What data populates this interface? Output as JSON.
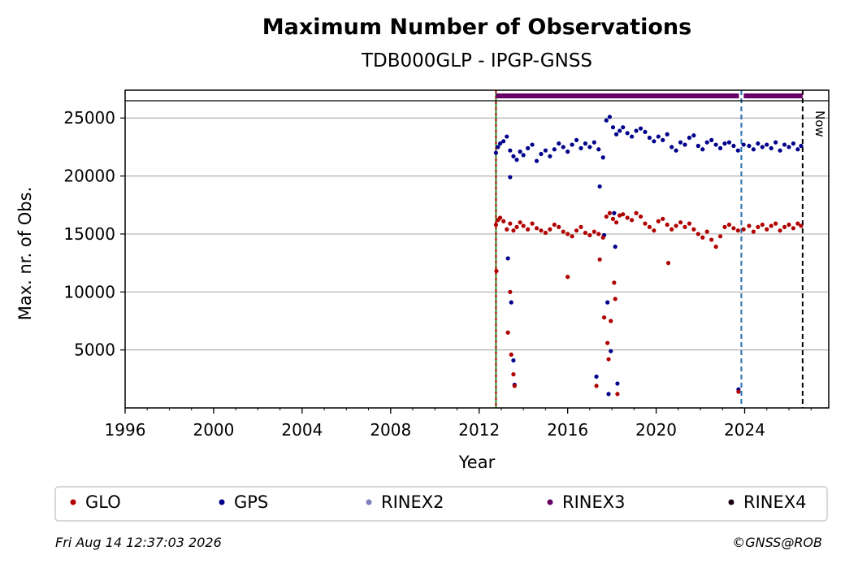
{
  "chart_data": {
    "type": "scatter",
    "title": "Maximum Number of Observations",
    "subtitle": "TDB000GLP - IPGP-GNSS",
    "xlabel": "Year",
    "ylabel": "Max. nr. of Obs.",
    "xlim": [
      1996.0,
      2027.8
    ],
    "ylim": [
      0,
      27400
    ],
    "x_ticks": [
      "1996",
      "2000",
      "2004",
      "2008",
      "2012",
      "2016",
      "2020",
      "2024"
    ],
    "y_ticks": [
      "5000",
      "10000",
      "15000",
      "20000",
      "25000"
    ],
    "grid": "horizontal",
    "legend_position": "bottom",
    "colors": {
      "GLO": "#b00000",
      "GPS": "#00008b",
      "RINEX2": "#8080c0",
      "RINEX3": "#660066",
      "RINEX4": "#1a0010",
      "start_line": "#2e8b2e",
      "event_line": "#1f6fb2",
      "now_line": "#000000"
    },
    "legend": [
      "GLO",
      "GPS",
      "RINEX2",
      "RINEX3",
      "RINEX4"
    ],
    "vertical_lines": {
      "start": 2012.76,
      "event": 2023.85,
      "now": 2026.62,
      "now_label": "Now"
    },
    "rinex_bar": {
      "name": "RINEX3",
      "start": 2012.76,
      "end": 2026.62,
      "gap_at": 2023.85
    },
    "series": [
      {
        "name": "GPS",
        "x": [
          2012.76,
          2012.85,
          2012.95,
          2013.1,
          2013.25,
          2013.4,
          2013.55,
          2013.7,
          2013.85,
          2014.0,
          2014.2,
          2014.4,
          2014.6,
          2014.8,
          2015.0,
          2015.2,
          2015.4,
          2015.6,
          2015.8,
          2016.0,
          2016.2,
          2016.4,
          2016.6,
          2016.8,
          2017.0,
          2017.2,
          2017.4,
          2017.6,
          2017.75,
          2017.9,
          2018.05,
          2018.2,
          2018.35,
          2018.5,
          2018.7,
          2018.9,
          2019.1,
          2019.3,
          2019.5,
          2019.7,
          2019.9,
          2020.1,
          2020.3,
          2020.5,
          2020.7,
          2020.9,
          2021.1,
          2021.3,
          2021.5,
          2021.7,
          2021.9,
          2022.1,
          2022.3,
          2022.5,
          2022.7,
          2022.9,
          2023.1,
          2023.3,
          2023.5,
          2023.7,
          2023.95,
          2024.2,
          2024.4,
          2024.6,
          2024.8,
          2025.0,
          2025.2,
          2025.4,
          2025.6,
          2025.8,
          2026.0,
          2026.2,
          2026.4,
          2026.55,
          2013.3,
          2013.45,
          2013.6,
          2017.3,
          2017.65,
          2017.8,
          2017.95,
          2018.1,
          2018.25,
          2023.72,
          2013.4,
          2013.55,
          2017.45,
          2017.85,
          2018.15
        ],
        "y": [
          22000,
          22500,
          22800,
          23000,
          23400,
          22200,
          21700,
          21400,
          22100,
          21800,
          22400,
          22700,
          21300,
          21900,
          22200,
          21700,
          22300,
          22800,
          22500,
          22100,
          22700,
          23100,
          22400,
          22800,
          22500,
          22900,
          22300,
          21600,
          24800,
          25100,
          24200,
          23600,
          23900,
          24200,
          23700,
          23400,
          23900,
          24100,
          23800,
          23300,
          23000,
          23400,
          23100,
          23600,
          22500,
          22200,
          22900,
          22700,
          23300,
          23500,
          22600,
          22300,
          22900,
          23100,
          22700,
          22400,
          22800,
          22900,
          22600,
          22200,
          22700,
          22600,
          22300,
          22800,
          22500,
          22700,
          22400,
          22900,
          22200,
          22700,
          22500,
          22800,
          22300,
          22600,
          12900,
          9100,
          2000,
          2700,
          14900,
          9100,
          4900,
          16800,
          2100,
          1600,
          19900,
          4100,
          19100,
          1200,
          13900
        ],
        "marker": "dot"
      },
      {
        "name": "GLO",
        "x": [
          2012.76,
          2012.85,
          2012.95,
          2013.1,
          2013.25,
          2013.4,
          2013.55,
          2013.7,
          2013.85,
          2014.0,
          2014.2,
          2014.4,
          2014.6,
          2014.8,
          2015.0,
          2015.2,
          2015.4,
          2015.6,
          2015.8,
          2016.0,
          2016.2,
          2016.4,
          2016.6,
          2016.8,
          2017.0,
          2017.2,
          2017.4,
          2017.6,
          2017.75,
          2017.9,
          2018.05,
          2018.2,
          2018.35,
          2018.5,
          2018.7,
          2018.9,
          2019.1,
          2019.3,
          2019.5,
          2019.7,
          2019.9,
          2020.1,
          2020.3,
          2020.5,
          2020.7,
          2020.9,
          2021.1,
          2021.3,
          2021.5,
          2021.7,
          2021.9,
          2022.1,
          2022.3,
          2022.5,
          2022.7,
          2022.9,
          2023.1,
          2023.3,
          2023.5,
          2023.7,
          2023.95,
          2024.2,
          2024.4,
          2024.6,
          2024.8,
          2025.0,
          2025.2,
          2025.4,
          2025.6,
          2025.8,
          2026.0,
          2026.2,
          2026.4,
          2026.55,
          2012.78,
          2013.3,
          2013.45,
          2013.6,
          2016.0,
          2017.3,
          2017.65,
          2017.8,
          2017.95,
          2018.1,
          2018.25,
          2020.55,
          2023.72,
          2013.4,
          2013.55,
          2017.45,
          2017.85,
          2018.15
        ],
        "y": [
          15800,
          16200,
          16400,
          16100,
          15400,
          15900,
          15300,
          15600,
          16000,
          15700,
          15400,
          15900,
          15500,
          15300,
          15100,
          15400,
          15800,
          15600,
          15200,
          15000,
          14800,
          15300,
          15600,
          15100,
          14900,
          15200,
          15000,
          14700,
          16500,
          16800,
          16300,
          16000,
          16600,
          16700,
          16400,
          16200,
          16800,
          16500,
          15900,
          15600,
          15300,
          16100,
          16300,
          15800,
          15400,
          15700,
          16000,
          15600,
          15900,
          15400,
          15000,
          14700,
          15200,
          14500,
          13900,
          14800,
          15600,
          15800,
          15500,
          15300,
          15400,
          15700,
          15200,
          15600,
          15800,
          15400,
          15700,
          15900,
          15300,
          15600,
          15800,
          15500,
          15900,
          15700,
          11800,
          6500,
          4600,
          1900,
          11300,
          1900,
          7800,
          5600,
          7500,
          10800,
          1200,
          12500,
          1400,
          10000,
          2900,
          12800,
          4200,
          9400
        ],
        "marker": "dot"
      }
    ]
  },
  "footer": {
    "timestamp": "Fri Aug 14 12:37:03 2026",
    "copyright": "©GNSS@ROB"
  }
}
